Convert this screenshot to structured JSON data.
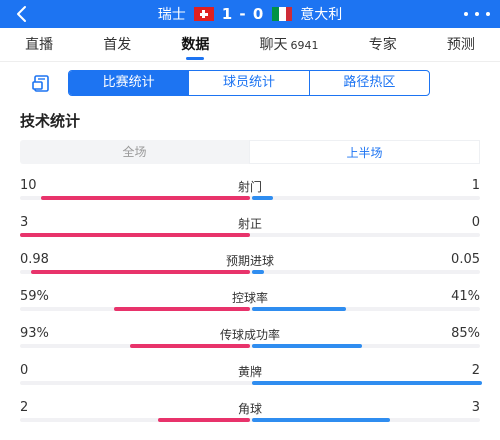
{
  "header": {
    "home_team": "瑞士",
    "score": "1 - 0",
    "away_team": "意大利",
    "colors": {
      "bar": "#1d74f2",
      "home_flag": "#e02020",
      "away_flag": [
        "#009246",
        "#ffffff",
        "#ce2b37"
      ]
    }
  },
  "nav": {
    "tabs": [
      {
        "label": "直播",
        "count": ""
      },
      {
        "label": "首发",
        "count": ""
      },
      {
        "label": "数据",
        "count": "",
        "active": true
      },
      {
        "label": "聊天",
        "count": "6941"
      },
      {
        "label": "专家",
        "count": ""
      },
      {
        "label": "预测",
        "count": ""
      }
    ]
  },
  "segment": {
    "options": [
      "比赛统计",
      "球员统计",
      "路径热区"
    ],
    "active_index": 0
  },
  "section_title": "技术统计",
  "half_toggle": {
    "options": [
      "全场",
      "上半场"
    ],
    "active_index": 1
  },
  "stats": [
    {
      "name": "射门",
      "home": "10",
      "away": "1",
      "home_frac": 0.91,
      "away_frac": 0.09
    },
    {
      "name": "射正",
      "home": "3",
      "away": "0",
      "home_frac": 1.0,
      "away_frac": 0.0
    },
    {
      "name": "预期进球",
      "home": "0.98",
      "away": "0.05",
      "home_frac": 0.95,
      "away_frac": 0.05
    },
    {
      "name": "控球率",
      "home": "59%",
      "away": "41%",
      "home_frac": 0.59,
      "away_frac": 0.41
    },
    {
      "name": "传球成功率",
      "home": "93%",
      "away": "85%",
      "home_frac": 0.52,
      "away_frac": 0.48
    },
    {
      "name": "黄牌",
      "home": "0",
      "away": "2",
      "home_frac": 0.0,
      "away_frac": 1.0
    },
    {
      "name": "角球",
      "home": "2",
      "away": "3",
      "home_frac": 0.4,
      "away_frac": 0.6
    }
  ],
  "icons": {
    "back": "back-arrow-icon",
    "home_flag": "switzerland-flag-icon",
    "away_flag": "italy-flag-icon",
    "more": "more-dots-icon",
    "layout": "document-icon"
  }
}
